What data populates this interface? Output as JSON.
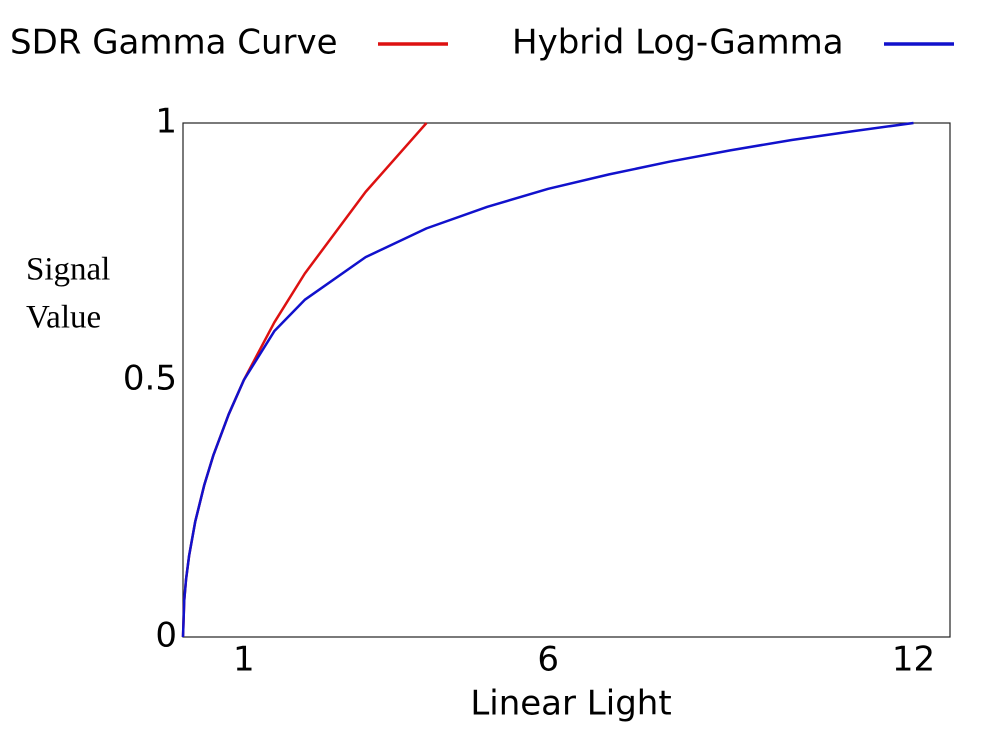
{
  "chart_data": {
    "type": "line",
    "x_label": "Linear Light",
    "y_label": [
      "Signal",
      "Value"
    ],
    "x": [
      0,
      0.02,
      0.05,
      0.1,
      0.2,
      0.35,
      0.5,
      0.75,
      1,
      1.5,
      2,
      3,
      4,
      5,
      6,
      7,
      8,
      9,
      10,
      11,
      12
    ],
    "series": [
      {
        "name": "SDR Gamma Curve",
        "color": "#dd1111",
        "values": [
          0,
          0.071,
          0.112,
          0.158,
          0.224,
          0.296,
          0.354,
          0.433,
          0.5,
          0.612,
          0.707,
          0.866,
          1.0,
          null,
          null,
          null,
          null,
          null,
          null,
          null,
          null
        ]
      },
      {
        "name": "Hybrid Log-Gamma",
        "color": "#1111cc",
        "values": [
          0,
          0.071,
          0.112,
          0.158,
          0.224,
          0.296,
          0.354,
          0.433,
          0.5,
          0.595,
          0.656,
          0.739,
          0.795,
          0.837,
          0.872,
          0.9,
          0.925,
          0.947,
          0.967,
          0.984,
          1.0
        ]
      }
    ],
    "xlim": [
      0,
      12.6
    ],
    "xticks": [
      1,
      6,
      12
    ],
    "ylim": [
      0,
      1
    ],
    "yticks": [
      0,
      0.5,
      1
    ],
    "grid": false,
    "legend": "top"
  }
}
